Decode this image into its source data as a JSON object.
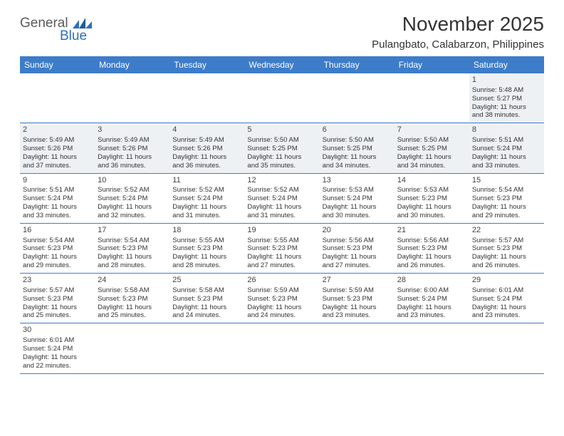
{
  "logo": {
    "part1": "General",
    "part2": "Blue"
  },
  "title": "November 2025",
  "subtitle": "Pulangbato, Calabarzon, Philippines",
  "colors": {
    "header_bar": "#3d7cc9",
    "header_text": "#ffffff",
    "body_text": "#333333",
    "shaded_bg": "#eef1f4",
    "row_border": "#3d7cc9",
    "logo_gray": "#5a5a5a",
    "logo_blue": "#2f6fb8"
  },
  "weekdays": [
    "Sunday",
    "Monday",
    "Tuesday",
    "Wednesday",
    "Thursday",
    "Friday",
    "Saturday"
  ],
  "weeks": [
    [
      {
        "empty": true
      },
      {
        "empty": true
      },
      {
        "empty": true
      },
      {
        "empty": true
      },
      {
        "empty": true
      },
      {
        "empty": true
      },
      {
        "num": "1",
        "shaded": true,
        "sunrise": "Sunrise: 5:48 AM",
        "sunset": "Sunset: 5:27 PM",
        "dl1": "Daylight: 11 hours",
        "dl2": "and 38 minutes."
      }
    ],
    [
      {
        "num": "2",
        "shaded": true,
        "sunrise": "Sunrise: 5:49 AM",
        "sunset": "Sunset: 5:26 PM",
        "dl1": "Daylight: 11 hours",
        "dl2": "and 37 minutes."
      },
      {
        "num": "3",
        "shaded": true,
        "sunrise": "Sunrise: 5:49 AM",
        "sunset": "Sunset: 5:26 PM",
        "dl1": "Daylight: 11 hours",
        "dl2": "and 36 minutes."
      },
      {
        "num": "4",
        "shaded": true,
        "sunrise": "Sunrise: 5:49 AM",
        "sunset": "Sunset: 5:26 PM",
        "dl1": "Daylight: 11 hours",
        "dl2": "and 36 minutes."
      },
      {
        "num": "5",
        "shaded": true,
        "sunrise": "Sunrise: 5:50 AM",
        "sunset": "Sunset: 5:25 PM",
        "dl1": "Daylight: 11 hours",
        "dl2": "and 35 minutes."
      },
      {
        "num": "6",
        "shaded": true,
        "sunrise": "Sunrise: 5:50 AM",
        "sunset": "Sunset: 5:25 PM",
        "dl1": "Daylight: 11 hours",
        "dl2": "and 34 minutes."
      },
      {
        "num": "7",
        "shaded": true,
        "sunrise": "Sunrise: 5:50 AM",
        "sunset": "Sunset: 5:25 PM",
        "dl1": "Daylight: 11 hours",
        "dl2": "and 34 minutes."
      },
      {
        "num": "8",
        "shaded": true,
        "sunrise": "Sunrise: 5:51 AM",
        "sunset": "Sunset: 5:24 PM",
        "dl1": "Daylight: 11 hours",
        "dl2": "and 33 minutes."
      }
    ],
    [
      {
        "num": "9",
        "sunrise": "Sunrise: 5:51 AM",
        "sunset": "Sunset: 5:24 PM",
        "dl1": "Daylight: 11 hours",
        "dl2": "and 33 minutes."
      },
      {
        "num": "10",
        "sunrise": "Sunrise: 5:52 AM",
        "sunset": "Sunset: 5:24 PM",
        "dl1": "Daylight: 11 hours",
        "dl2": "and 32 minutes."
      },
      {
        "num": "11",
        "sunrise": "Sunrise: 5:52 AM",
        "sunset": "Sunset: 5:24 PM",
        "dl1": "Daylight: 11 hours",
        "dl2": "and 31 minutes."
      },
      {
        "num": "12",
        "sunrise": "Sunrise: 5:52 AM",
        "sunset": "Sunset: 5:24 PM",
        "dl1": "Daylight: 11 hours",
        "dl2": "and 31 minutes."
      },
      {
        "num": "13",
        "sunrise": "Sunrise: 5:53 AM",
        "sunset": "Sunset: 5:24 PM",
        "dl1": "Daylight: 11 hours",
        "dl2": "and 30 minutes."
      },
      {
        "num": "14",
        "sunrise": "Sunrise: 5:53 AM",
        "sunset": "Sunset: 5:23 PM",
        "dl1": "Daylight: 11 hours",
        "dl2": "and 30 minutes."
      },
      {
        "num": "15",
        "sunrise": "Sunrise: 5:54 AM",
        "sunset": "Sunset: 5:23 PM",
        "dl1": "Daylight: 11 hours",
        "dl2": "and 29 minutes."
      }
    ],
    [
      {
        "num": "16",
        "sunrise": "Sunrise: 5:54 AM",
        "sunset": "Sunset: 5:23 PM",
        "dl1": "Daylight: 11 hours",
        "dl2": "and 29 minutes."
      },
      {
        "num": "17",
        "sunrise": "Sunrise: 5:54 AM",
        "sunset": "Sunset: 5:23 PM",
        "dl1": "Daylight: 11 hours",
        "dl2": "and 28 minutes."
      },
      {
        "num": "18",
        "sunrise": "Sunrise: 5:55 AM",
        "sunset": "Sunset: 5:23 PM",
        "dl1": "Daylight: 11 hours",
        "dl2": "and 28 minutes."
      },
      {
        "num": "19",
        "sunrise": "Sunrise: 5:55 AM",
        "sunset": "Sunset: 5:23 PM",
        "dl1": "Daylight: 11 hours",
        "dl2": "and 27 minutes."
      },
      {
        "num": "20",
        "sunrise": "Sunrise: 5:56 AM",
        "sunset": "Sunset: 5:23 PM",
        "dl1": "Daylight: 11 hours",
        "dl2": "and 27 minutes."
      },
      {
        "num": "21",
        "sunrise": "Sunrise: 5:56 AM",
        "sunset": "Sunset: 5:23 PM",
        "dl1": "Daylight: 11 hours",
        "dl2": "and 26 minutes."
      },
      {
        "num": "22",
        "sunrise": "Sunrise: 5:57 AM",
        "sunset": "Sunset: 5:23 PM",
        "dl1": "Daylight: 11 hours",
        "dl2": "and 26 minutes."
      }
    ],
    [
      {
        "num": "23",
        "sunrise": "Sunrise: 5:57 AM",
        "sunset": "Sunset: 5:23 PM",
        "dl1": "Daylight: 11 hours",
        "dl2": "and 25 minutes."
      },
      {
        "num": "24",
        "sunrise": "Sunrise: 5:58 AM",
        "sunset": "Sunset: 5:23 PM",
        "dl1": "Daylight: 11 hours",
        "dl2": "and 25 minutes."
      },
      {
        "num": "25",
        "sunrise": "Sunrise: 5:58 AM",
        "sunset": "Sunset: 5:23 PM",
        "dl1": "Daylight: 11 hours",
        "dl2": "and 24 minutes."
      },
      {
        "num": "26",
        "sunrise": "Sunrise: 5:59 AM",
        "sunset": "Sunset: 5:23 PM",
        "dl1": "Daylight: 11 hours",
        "dl2": "and 24 minutes."
      },
      {
        "num": "27",
        "sunrise": "Sunrise: 5:59 AM",
        "sunset": "Sunset: 5:23 PM",
        "dl1": "Daylight: 11 hours",
        "dl2": "and 23 minutes."
      },
      {
        "num": "28",
        "sunrise": "Sunrise: 6:00 AM",
        "sunset": "Sunset: 5:24 PM",
        "dl1": "Daylight: 11 hours",
        "dl2": "and 23 minutes."
      },
      {
        "num": "29",
        "sunrise": "Sunrise: 6:01 AM",
        "sunset": "Sunset: 5:24 PM",
        "dl1": "Daylight: 11 hours",
        "dl2": "and 23 minutes."
      }
    ],
    [
      {
        "num": "30",
        "sunrise": "Sunrise: 6:01 AM",
        "sunset": "Sunset: 5:24 PM",
        "dl1": "Daylight: 11 hours",
        "dl2": "and 22 minutes."
      },
      {
        "empty": true
      },
      {
        "empty": true
      },
      {
        "empty": true
      },
      {
        "empty": true
      },
      {
        "empty": true
      },
      {
        "empty": true
      }
    ]
  ]
}
